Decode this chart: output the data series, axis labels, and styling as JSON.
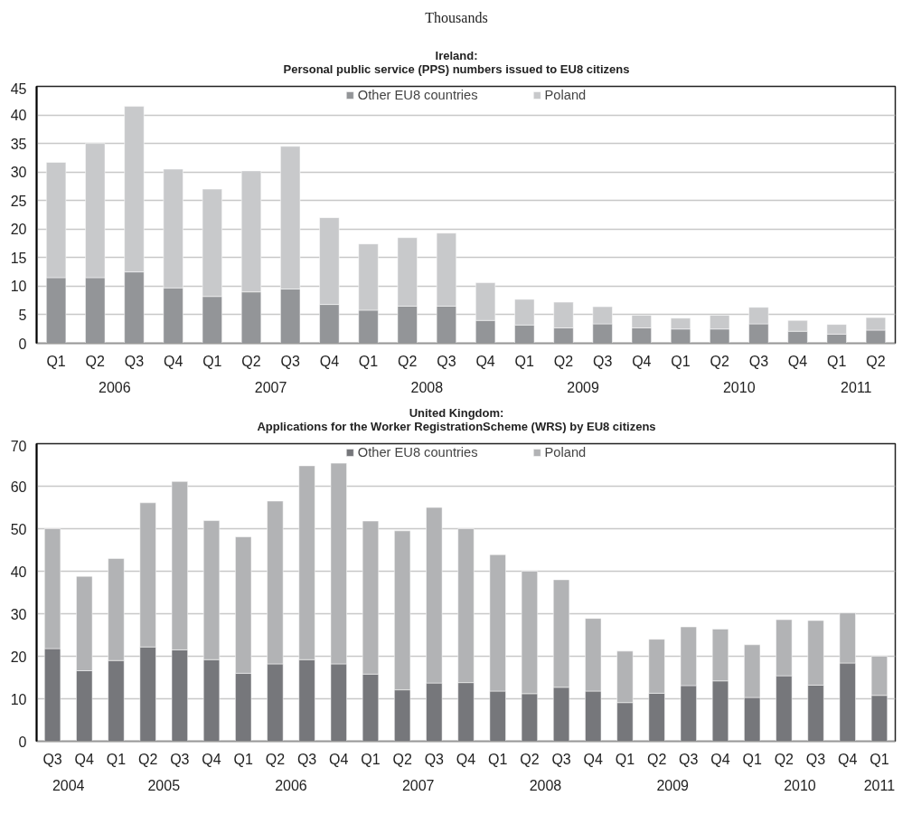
{
  "chart_data": [
    {
      "type": "bar",
      "stacked": true,
      "ylabel": "Thousands",
      "title": "Ireland:\nPersonal public service (PPS) numbers issued to EU8 citizens",
      "categories": [
        "Q1",
        "Q2",
        "Q3",
        "Q4",
        "Q1",
        "Q2",
        "Q3",
        "Q4",
        "Q1",
        "Q2",
        "Q3",
        "Q4",
        "Q1",
        "Q2",
        "Q3",
        "Q4",
        "Q1",
        "Q2",
        "Q3",
        "Q4",
        "Q1",
        "Q2"
      ],
      "annotations": [
        "2006",
        "2007",
        "2008",
        "2009",
        "2010",
        "2011"
      ],
      "series": [
        {
          "name": "Other EU8 countries",
          "color": "#939598",
          "values": [
            11.5,
            11.5,
            12.5,
            9.7,
            8.2,
            9.0,
            9.5,
            6.8,
            5.8,
            6.5,
            6.5,
            4.0,
            3.2,
            2.7,
            3.4,
            2.7,
            2.5,
            2.5,
            3.4,
            2.1,
            1.6,
            2.3
          ]
        },
        {
          "name": "Poland",
          "color": "#c8c9cb",
          "values": [
            20.2,
            23.5,
            29.0,
            20.8,
            18.8,
            21.2,
            25.0,
            15.2,
            11.6,
            12.0,
            12.8,
            6.6,
            4.5,
            4.5,
            3.0,
            2.2,
            1.9,
            2.4,
            2.9,
            1.9,
            1.7,
            2.2
          ]
        }
      ],
      "ylim": [
        0,
        45
      ],
      "yticks": [
        0,
        5,
        10,
        15,
        20,
        25,
        30,
        35,
        40,
        45
      ],
      "grid": "y",
      "legend": "top"
    },
    {
      "type": "bar",
      "stacked": true,
      "title": "United Kingdom:\nApplications for the Worker RegistrationScheme (WRS) by EU8 citizens",
      "categories": [
        "Q3",
        "Q4",
        "Q1",
        "Q2",
        "Q3",
        "Q4",
        "Q1",
        "Q2",
        "Q3",
        "Q4",
        "Q1",
        "Q2",
        "Q3",
        "Q4",
        "Q1",
        "Q2",
        "Q3",
        "Q4",
        "Q1",
        "Q2",
        "Q3",
        "Q4",
        "Q1",
        "Q2",
        "Q3",
        "Q4",
        "Q1"
      ],
      "annotations": [
        "2004",
        "2005",
        "2006",
        "2007",
        "2008",
        "2009",
        "2010",
        "2011"
      ],
      "series": [
        {
          "name": "Other EU8 countries",
          "color": "#76777b",
          "values": [
            21.8,
            16.6,
            19.0,
            22.2,
            21.5,
            19.2,
            16.0,
            18.2,
            19.2,
            18.2,
            15.8,
            12.1,
            13.7,
            13.8,
            11.8,
            11.2,
            12.7,
            11.8,
            9.1,
            11.3,
            13.1,
            14.2,
            10.3,
            15.4,
            13.2,
            18.4,
            10.8
          ]
        },
        {
          "name": "Poland",
          "color": "#b2b3b5",
          "values": [
            28.2,
            22.2,
            24.0,
            33.9,
            39.6,
            32.7,
            32.1,
            38.3,
            45.6,
            47.2,
            36.0,
            37.4,
            41.3,
            36.2,
            32.1,
            28.8,
            25.3,
            17.1,
            12.1,
            12.7,
            13.8,
            12.2,
            12.4,
            13.2,
            15.2,
            11.8,
            9.2
          ]
        }
      ],
      "ylim": [
        0,
        70
      ],
      "yticks": [
        0,
        10,
        20,
        30,
        40,
        50,
        60,
        70
      ],
      "grid": "y",
      "legend": "top"
    }
  ]
}
